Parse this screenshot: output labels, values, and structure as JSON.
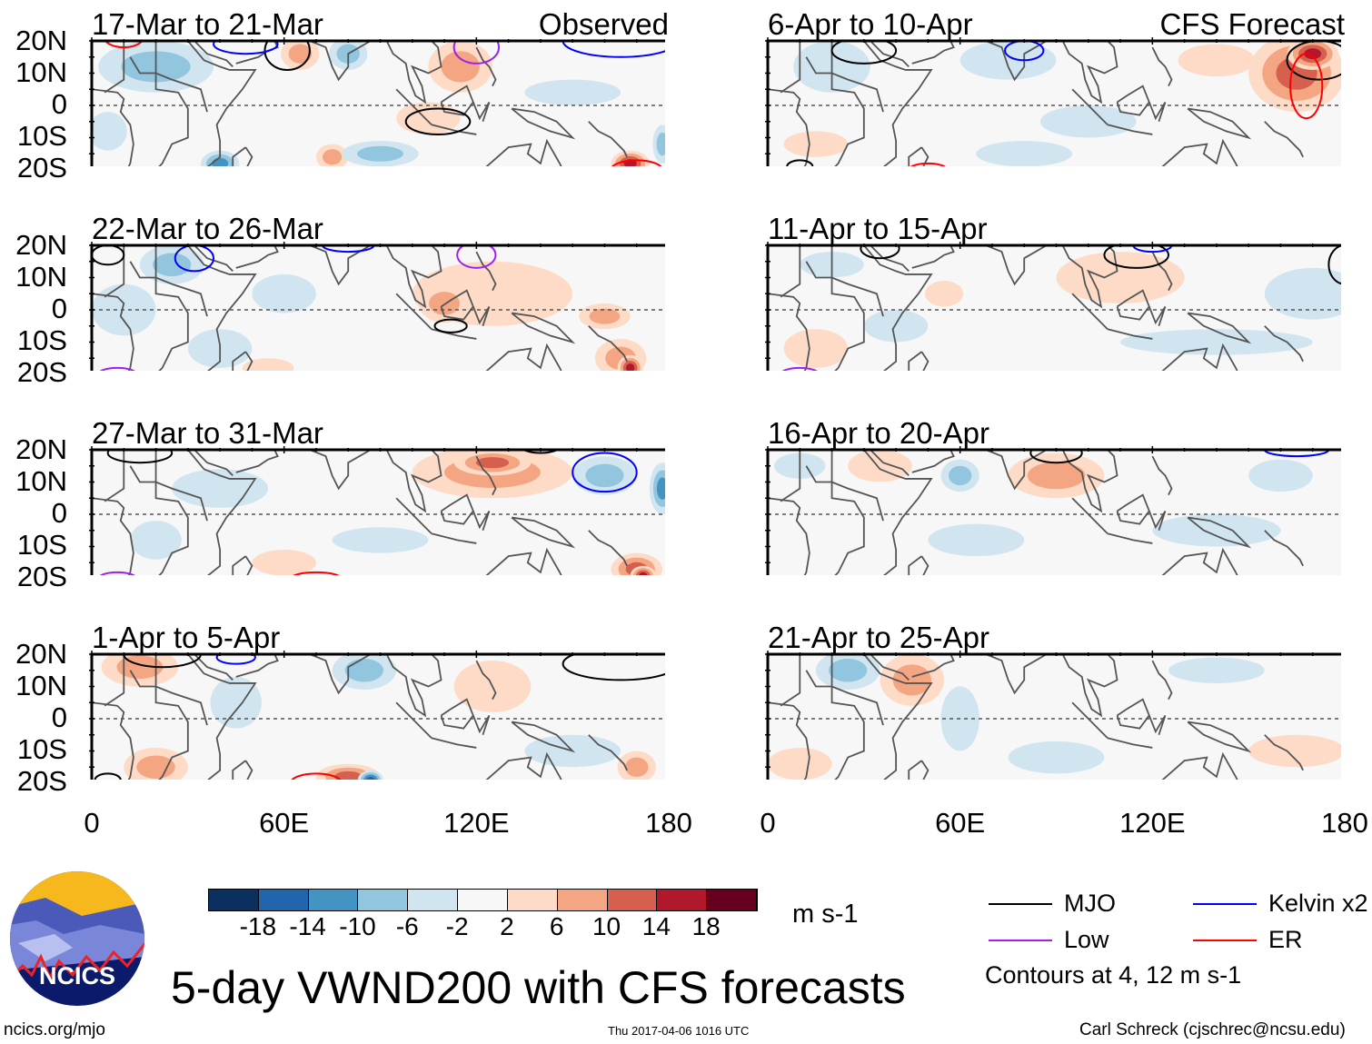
{
  "title": "5-day VWND200 with CFS forecasts",
  "observed_label": "Observed",
  "forecast_label": "CFS Forecast",
  "units": "m s-1",
  "lat_labels": [
    "20N",
    "10N",
    "0",
    "10S",
    "20S"
  ],
  "lon_labels": [
    "0",
    "60E",
    "120E",
    "180"
  ],
  "footer": {
    "left": "ncics.org/mjo",
    "center": "Thu 2017-04-06 1016 UTC",
    "right": "Carl Schreck (cjschrec@ncsu.edu)"
  },
  "logo_text": "NCICS",
  "colorbar": {
    "labels": [
      "-18",
      "-14",
      "-10",
      "-6",
      "-2",
      "2",
      "6",
      "10",
      "14",
      "18"
    ],
    "colors": [
      "#0b2f5e",
      "#2166ac",
      "#4393c3",
      "#92c5de",
      "#d1e5f0",
      "#f7f7f7",
      "#fddbc7",
      "#f4a582",
      "#d6604d",
      "#b2182b",
      "#67001f"
    ]
  },
  "legend": {
    "items": [
      {
        "label": "MJO",
        "color": "#000000"
      },
      {
        "label": "Kelvin x2",
        "color": "#0000ff"
      },
      {
        "label": "Low",
        "color": "#a020f0"
      },
      {
        "label": "ER",
        "color": "#ff0000"
      }
    ],
    "note": "Contours at 4, 12 m s-1"
  },
  "panels": [
    {
      "title": "17-Mar to 21-Mar",
      "blobs": [
        [
          20,
          12,
          18,
          8,
          -6
        ],
        [
          40,
          -18,
          6,
          4,
          -10
        ],
        [
          65,
          16,
          6,
          5,
          6
        ],
        [
          115,
          12,
          10,
          8,
          8
        ],
        [
          105,
          -4,
          10,
          5,
          4
        ],
        [
          168,
          -18,
          6,
          4,
          16
        ],
        [
          75,
          -16,
          5,
          4,
          8
        ],
        [
          90,
          -15,
          12,
          4,
          -6
        ],
        [
          80,
          16,
          6,
          5,
          -6
        ],
        [
          178,
          -12,
          3,
          6,
          -8
        ],
        [
          150,
          4,
          15,
          4,
          -3
        ],
        [
          5,
          -8,
          6,
          6,
          -4
        ]
      ],
      "contours": [
        [
          108,
          -5,
          10,
          4,
          "MJO"
        ],
        [
          61,
          17,
          7,
          6,
          "MJO"
        ],
        [
          10,
          21,
          6,
          3,
          "ER"
        ],
        [
          170,
          -20,
          8,
          3,
          "ER"
        ],
        [
          48,
          19,
          10,
          3,
          "Kelvin"
        ],
        [
          165,
          20,
          18,
          5,
          "Kelvin"
        ],
        [
          120,
          18,
          7,
          5,
          "Low"
        ]
      ]
    },
    {
      "title": "22-Mar to 26-Mar",
      "blobs": [
        [
          25,
          14,
          10,
          6,
          -8
        ],
        [
          10,
          0,
          10,
          8,
          -4
        ],
        [
          125,
          5,
          25,
          10,
          4
        ],
        [
          110,
          2,
          8,
          6,
          8
        ],
        [
          165,
          -15,
          8,
          6,
          8
        ],
        [
          168,
          -18,
          4,
          4,
          16
        ],
        [
          160,
          -2,
          8,
          4,
          6
        ],
        [
          40,
          -12,
          10,
          6,
          -4
        ],
        [
          60,
          5,
          10,
          6,
          -2
        ],
        [
          55,
          -18,
          8,
          3,
          4
        ]
      ],
      "contours": [
        [
          112,
          -5,
          5,
          2,
          "MJO"
        ],
        [
          5,
          17,
          5,
          3,
          "MJO"
        ],
        [
          32,
          16,
          6,
          4,
          "Kelvin"
        ],
        [
          80,
          20,
          8,
          2,
          "Kelvin"
        ],
        [
          120,
          17,
          6,
          4,
          "Low"
        ],
        [
          8,
          -20,
          6,
          2,
          "Low"
        ]
      ]
    },
    {
      "title": "27-Mar to 31-Mar",
      "blobs": [
        [
          125,
          13,
          25,
          8,
          6
        ],
        [
          125,
          16,
          12,
          4,
          12
        ],
        [
          160,
          12,
          10,
          6,
          -6
        ],
        [
          178,
          8,
          4,
          8,
          -10
        ],
        [
          40,
          8,
          15,
          6,
          -4
        ],
        [
          170,
          -17,
          8,
          5,
          10
        ],
        [
          172,
          -19,
          4,
          3,
          16
        ],
        [
          20,
          -8,
          8,
          6,
          -4
        ],
        [
          90,
          -8,
          15,
          4,
          -3
        ],
        [
          60,
          -15,
          10,
          4,
          4
        ]
      ],
      "contours": [
        [
          160,
          13,
          10,
          6,
          "Kelvin"
        ],
        [
          15,
          19,
          10,
          3,
          "MJO"
        ],
        [
          140,
          21,
          6,
          2,
          "MJO"
        ],
        [
          70,
          -20,
          8,
          2,
          "ER"
        ],
        [
          8,
          -20,
          6,
          2,
          "Low"
        ]
      ]
    },
    {
      "title": "1-Apr to 5-Apr",
      "blobs": [
        [
          15,
          16,
          12,
          6,
          6
        ],
        [
          85,
          15,
          10,
          6,
          -6
        ],
        [
          125,
          10,
          12,
          8,
          4
        ],
        [
          80,
          -18,
          10,
          4,
          10
        ],
        [
          87,
          -19,
          4,
          3,
          -14
        ],
        [
          20,
          -15,
          10,
          6,
          6
        ],
        [
          150,
          -10,
          15,
          5,
          -4
        ],
        [
          170,
          -15,
          6,
          5,
          6
        ],
        [
          45,
          5,
          8,
          8,
          -3
        ]
      ],
      "contours": [
        [
          22,
          20,
          12,
          4,
          "MJO"
        ],
        [
          165,
          17,
          18,
          5,
          "MJO"
        ],
        [
          70,
          -20,
          8,
          3,
          "ER"
        ],
        [
          5,
          -19,
          4,
          2,
          "MJO"
        ],
        [
          45,
          19,
          6,
          2,
          "Kelvin"
        ]
      ]
    },
    {
      "title": "6-Apr to 10-Apr",
      "blobs": [
        [
          165,
          10,
          15,
          12,
          10
        ],
        [
          170,
          16,
          8,
          5,
          16
        ],
        [
          75,
          14,
          15,
          6,
          -4
        ],
        [
          20,
          12,
          12,
          8,
          -4
        ],
        [
          140,
          14,
          12,
          5,
          4
        ],
        [
          80,
          -15,
          15,
          4,
          -4
        ],
        [
          100,
          -5,
          15,
          5,
          -2
        ],
        [
          15,
          -12,
          10,
          4,
          4
        ]
      ],
      "contours": [
        [
          172,
          14,
          10,
          6,
          "MJO"
        ],
        [
          168,
          6,
          5,
          10,
          "ER"
        ],
        [
          10,
          -19,
          4,
          2,
          "MJO"
        ],
        [
          30,
          17,
          10,
          4,
          "MJO"
        ],
        [
          80,
          17,
          6,
          3,
          "Kelvin"
        ],
        [
          50,
          -20,
          6,
          2,
          "ER"
        ]
      ]
    },
    {
      "title": "11-Apr to 15-Apr",
      "blobs": [
        [
          110,
          10,
          20,
          8,
          4
        ],
        [
          170,
          5,
          15,
          8,
          -4
        ],
        [
          15,
          -12,
          10,
          6,
          4
        ],
        [
          55,
          5,
          6,
          4,
          4
        ],
        [
          140,
          -10,
          30,
          4,
          -3
        ],
        [
          40,
          -5,
          10,
          5,
          -3
        ],
        [
          20,
          14,
          10,
          4,
          -4
        ]
      ],
      "contours": [
        [
          180,
          14,
          5,
          6,
          "MJO"
        ],
        [
          35,
          19,
          6,
          3,
          "MJO"
        ],
        [
          115,
          17,
          10,
          4,
          "MJO"
        ],
        [
          120,
          20,
          6,
          2,
          "Kelvin"
        ],
        [
          10,
          -20,
          6,
          2,
          "Low"
        ]
      ]
    },
    {
      "title": "16-Apr to 20-Apr",
      "blobs": [
        [
          90,
          12,
          15,
          7,
          6
        ],
        [
          60,
          12,
          6,
          5,
          -6
        ],
        [
          35,
          15,
          10,
          5,
          4
        ],
        [
          160,
          12,
          10,
          5,
          -4
        ],
        [
          140,
          -5,
          20,
          5,
          -4
        ],
        [
          65,
          -8,
          15,
          5,
          -3
        ],
        [
          10,
          15,
          8,
          4,
          -4
        ]
      ],
      "contours": [
        [
          90,
          19,
          8,
          3,
          "MJO"
        ],
        [
          165,
          20,
          10,
          2,
          "Kelvin"
        ]
      ]
    },
    {
      "title": "21-Apr to 25-Apr",
      "blobs": [
        [
          25,
          15,
          10,
          6,
          -8
        ],
        [
          45,
          12,
          10,
          8,
          6
        ],
        [
          10,
          -14,
          10,
          5,
          4
        ],
        [
          90,
          -12,
          15,
          5,
          -3
        ],
        [
          165,
          -10,
          15,
          5,
          4
        ],
        [
          60,
          0,
          6,
          10,
          -2
        ],
        [
          140,
          15,
          15,
          4,
          -3
        ]
      ],
      "contours": []
    }
  ]
}
